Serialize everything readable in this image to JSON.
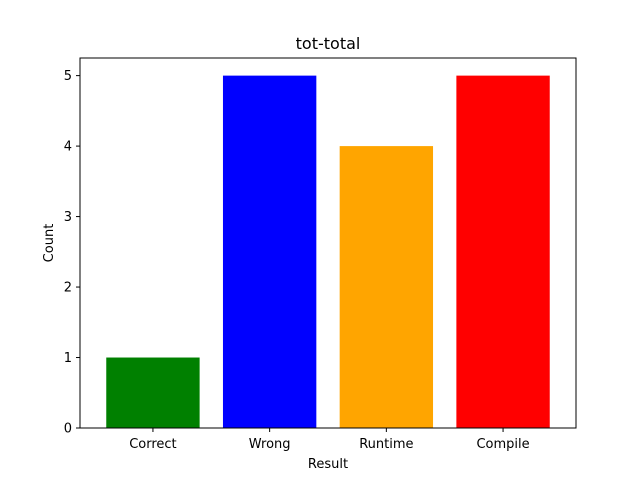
{
  "chart_data": {
    "type": "bar",
    "title": "tot-total",
    "xlabel": "Result",
    "ylabel": "Count",
    "categories": [
      "Correct",
      "Wrong",
      "Runtime",
      "Compile"
    ],
    "values": [
      1,
      5,
      4,
      5
    ],
    "colors": [
      "#008000",
      "#0000ff",
      "#ffa500",
      "#ff0000"
    ],
    "ylim": [
      0,
      5.25
    ],
    "yticks": [
      "0",
      "1",
      "2",
      "3",
      "4",
      "5"
    ],
    "grid": false,
    "legend": "none"
  }
}
